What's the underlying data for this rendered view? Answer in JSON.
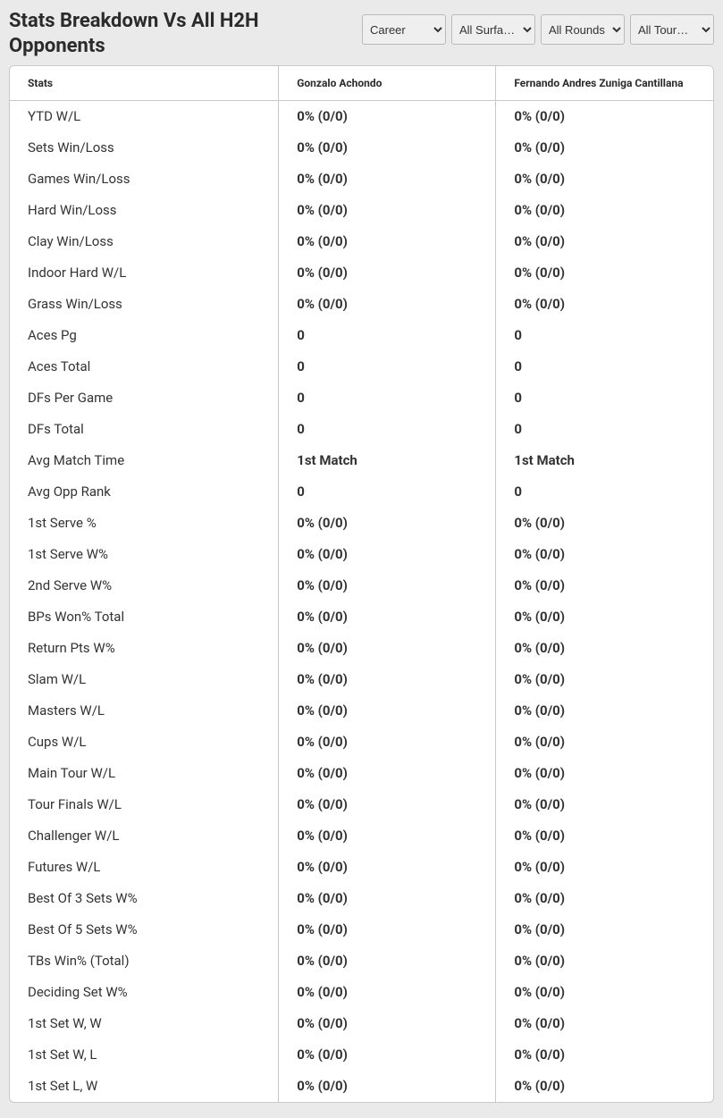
{
  "header": {
    "title": "Stats Breakdown Vs All H2H Opponents"
  },
  "filters": {
    "period": {
      "selected": "Career",
      "options": [
        "Career"
      ]
    },
    "surface": {
      "selected": "All Surfa…",
      "options": [
        "All Surfa…"
      ]
    },
    "round": {
      "selected": "All Rounds",
      "options": [
        "All Rounds"
      ]
    },
    "tour": {
      "selected": "All Tour…",
      "options": [
        "All Tour…"
      ]
    }
  },
  "table": {
    "columns": {
      "stats": "Stats",
      "p1": "Gonzalo Achondo",
      "p2": "Fernando Andres Zuniga Cantillana"
    },
    "rows": [
      {
        "name": "YTD W/L",
        "p1": "0% (0/0)",
        "p2": "0% (0/0)"
      },
      {
        "name": "Sets Win/Loss",
        "p1": "0% (0/0)",
        "p2": "0% (0/0)"
      },
      {
        "name": "Games Win/Loss",
        "p1": "0% (0/0)",
        "p2": "0% (0/0)"
      },
      {
        "name": "Hard Win/Loss",
        "p1": "0% (0/0)",
        "p2": "0% (0/0)"
      },
      {
        "name": "Clay Win/Loss",
        "p1": "0% (0/0)",
        "p2": "0% (0/0)"
      },
      {
        "name": "Indoor Hard W/L",
        "p1": "0% (0/0)",
        "p2": "0% (0/0)"
      },
      {
        "name": "Grass Win/Loss",
        "p1": "0% (0/0)",
        "p2": "0% (0/0)"
      },
      {
        "name": "Aces Pg",
        "p1": "0",
        "p2": "0"
      },
      {
        "name": "Aces Total",
        "p1": "0",
        "p2": "0"
      },
      {
        "name": "DFs Per Game",
        "p1": "0",
        "p2": "0"
      },
      {
        "name": "DFs Total",
        "p1": "0",
        "p2": "0"
      },
      {
        "name": "Avg Match Time",
        "p1": "1st Match",
        "p2": "1st Match"
      },
      {
        "name": "Avg Opp Rank",
        "p1": "0",
        "p2": "0"
      },
      {
        "name": "1st Serve %",
        "p1": "0% (0/0)",
        "p2": "0% (0/0)"
      },
      {
        "name": "1st Serve W%",
        "p1": "0% (0/0)",
        "p2": "0% (0/0)"
      },
      {
        "name": "2nd Serve W%",
        "p1": "0% (0/0)",
        "p2": "0% (0/0)"
      },
      {
        "name": "BPs Won% Total",
        "p1": "0% (0/0)",
        "p2": "0% (0/0)"
      },
      {
        "name": "Return Pts W%",
        "p1": "0% (0/0)",
        "p2": "0% (0/0)"
      },
      {
        "name": "Slam W/L",
        "p1": "0% (0/0)",
        "p2": "0% (0/0)"
      },
      {
        "name": "Masters W/L",
        "p1": "0% (0/0)",
        "p2": "0% (0/0)"
      },
      {
        "name": "Cups W/L",
        "p1": "0% (0/0)",
        "p2": "0% (0/0)"
      },
      {
        "name": "Main Tour W/L",
        "p1": "0% (0/0)",
        "p2": "0% (0/0)"
      },
      {
        "name": "Tour Finals W/L",
        "p1": "0% (0/0)",
        "p2": "0% (0/0)"
      },
      {
        "name": "Challenger W/L",
        "p1": "0% (0/0)",
        "p2": "0% (0/0)"
      },
      {
        "name": "Futures W/L",
        "p1": "0% (0/0)",
        "p2": "0% (0/0)"
      },
      {
        "name": "Best Of 3 Sets W%",
        "p1": "0% (0/0)",
        "p2": "0% (0/0)"
      },
      {
        "name": "Best Of 5 Sets W%",
        "p1": "0% (0/0)",
        "p2": "0% (0/0)"
      },
      {
        "name": "TBs Win% (Total)",
        "p1": "0% (0/0)",
        "p2": "0% (0/0)"
      },
      {
        "name": "Deciding Set W%",
        "p1": "0% (0/0)",
        "p2": "0% (0/0)"
      },
      {
        "name": "1st Set W, W",
        "p1": "0% (0/0)",
        "p2": "0% (0/0)"
      },
      {
        "name": "1st Set W, L",
        "p1": "0% (0/0)",
        "p2": "0% (0/0)"
      },
      {
        "name": "1st Set L, W",
        "p1": "0% (0/0)",
        "p2": "0% (0/0)"
      }
    ]
  }
}
